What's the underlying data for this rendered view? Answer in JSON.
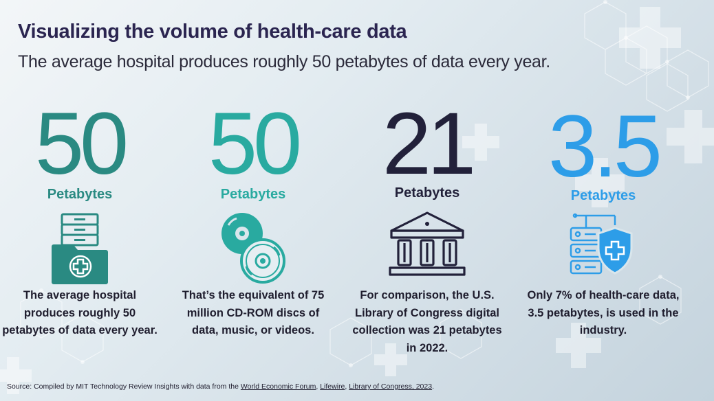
{
  "title": "Visualizing the volume of health-care data",
  "subtitle": "The average hospital produces roughly 50 petabytes of data every year.",
  "stats": [
    {
      "number": "50",
      "unit": "Petabytes",
      "color": "#2a8a82",
      "icon": "hospital-file-folder-icon",
      "description": "The average hospital produces roughly 50 petabytes of data every year."
    },
    {
      "number": "50",
      "unit": "Petabytes",
      "color": "#29aaa0",
      "icon": "cd-rom-discs-icon",
      "description": "That’s the equivalent of 75 million CD-ROM discs of data, music, or videos."
    },
    {
      "number": "21",
      "unit": "Petabytes",
      "color": "#22213a",
      "icon": "library-building-icon",
      "description": "For comparison, the U.S. Library of Congress digital collection was 21 petabytes in 2022."
    },
    {
      "number": "3.5",
      "unit": "Petabytes",
      "color": "#2d9de8",
      "icon": "server-shield-icon",
      "description": "Only 7% of health-care data, 3.5 petabytes, is used in the industry."
    }
  ],
  "source": {
    "prefix": "Source: Compiled by MIT Technology Review Insights with data from the ",
    "link1": "World Economic Forum",
    "sep1": ", ",
    "link2": "Lifewire",
    "sep2": ", ",
    "link3": "Library of Congress, 2023",
    "suffix": "."
  }
}
